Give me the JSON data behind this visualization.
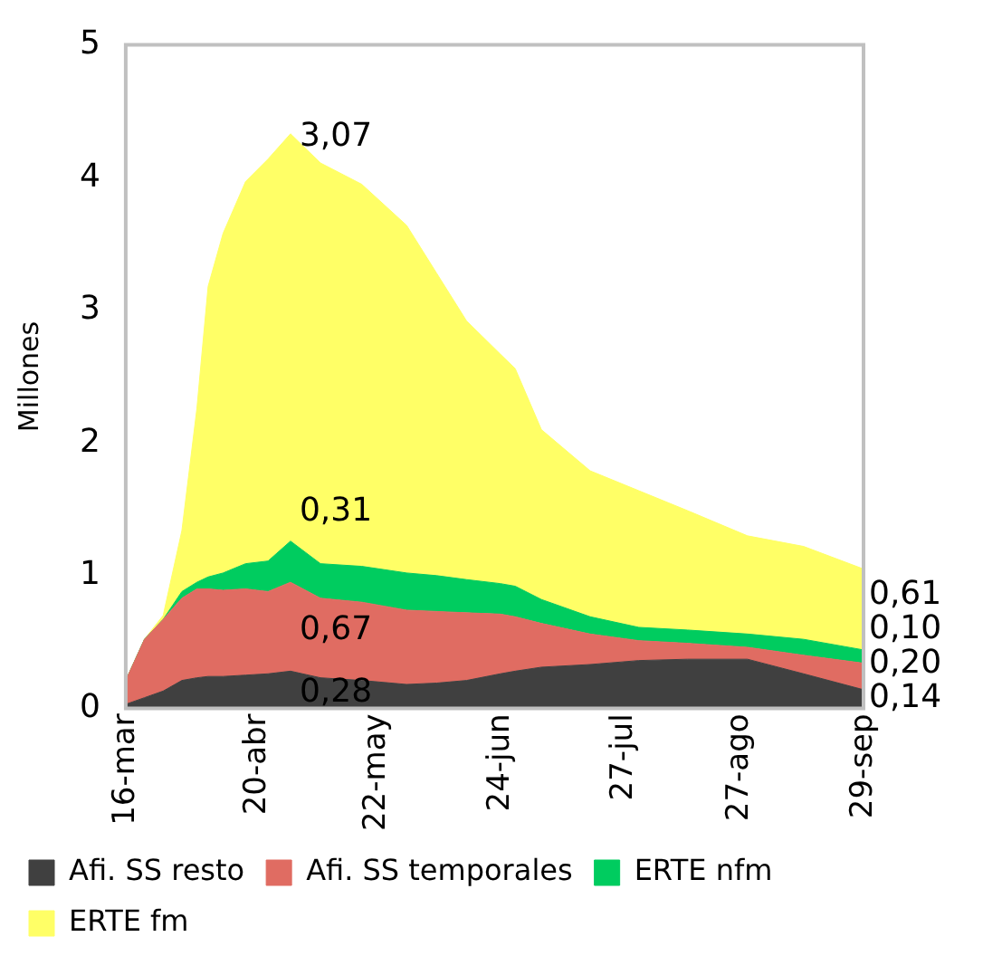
{
  "chart_data": {
    "type": "area",
    "stacked": true,
    "ylabel": "Millones",
    "x": [
      "--03-16",
      "--03-21",
      "--03-26",
      "--03-31",
      "--04-04",
      "--04-07",
      "--04-11",
      "--04-17",
      "--04-23",
      "--04-29",
      "--05-07",
      "--05-18",
      "--05-30",
      "--06-07",
      "--06-15",
      "--06-24",
      "--06-28",
      "--07-05",
      "--07-18",
      "--07-31",
      "--08-13",
      "--08-29",
      "--09-13",
      "--09-29"
    ],
    "series": [
      {
        "name": "Afi. SS resto",
        "color": "#404040",
        "values": [
          0.03,
          0.08,
          0.13,
          0.21,
          0.23,
          0.24,
          0.24,
          0.25,
          0.26,
          0.28,
          0.23,
          0.21,
          0.18,
          0.19,
          0.21,
          0.26,
          0.28,
          0.31,
          0.33,
          0.36,
          0.37,
          0.37,
          0.26,
          0.14
        ],
        "value_labels": [
          null,
          null,
          null,
          null,
          null,
          null,
          null,
          null,
          null,
          "0,28",
          null,
          null,
          null,
          null,
          null,
          null,
          null,
          null,
          null,
          null,
          null,
          null,
          null,
          "0,14"
        ]
      },
      {
        "name": "Afi. SS temporales",
        "color": "#e06c62",
        "values": [
          0.18,
          0.44,
          0.54,
          0.62,
          0.67,
          0.66,
          0.65,
          0.65,
          0.62,
          0.67,
          0.6,
          0.59,
          0.56,
          0.54,
          0.51,
          0.45,
          0.41,
          0.33,
          0.23,
          0.15,
          0.12,
          0.09,
          0.14,
          0.2
        ],
        "value_labels": [
          null,
          null,
          null,
          null,
          null,
          null,
          null,
          null,
          null,
          "0,67",
          null,
          null,
          null,
          null,
          null,
          null,
          null,
          null,
          null,
          null,
          null,
          null,
          null,
          "0,20"
        ]
      },
      {
        "name": "ERTE nfm",
        "color": "#00cc5f",
        "values": [
          0,
          0,
          0,
          0.05,
          0.05,
          0.09,
          0.13,
          0.19,
          0.23,
          0.31,
          0.26,
          0.27,
          0.28,
          0.27,
          0.25,
          0.23,
          0.23,
          0.18,
          0.13,
          0.1,
          0.1,
          0.1,
          0.12,
          0.1
        ],
        "value_labels": [
          null,
          null,
          null,
          null,
          null,
          null,
          null,
          null,
          null,
          "0,31",
          null,
          null,
          null,
          null,
          null,
          null,
          null,
          null,
          null,
          null,
          null,
          null,
          null,
          "0,10"
        ]
      },
      {
        "name": "ERTE fm",
        "color": "#ffff66",
        "values": [
          0,
          0,
          0.03,
          0.46,
          1.31,
          2.19,
          2.56,
          2.88,
          3.03,
          3.07,
          3.02,
          2.88,
          2.62,
          2.28,
          1.95,
          1.73,
          1.64,
          1.28,
          1.1,
          1.03,
          0.9,
          0.74,
          0.7,
          0.61
        ],
        "value_labels": [
          null,
          null,
          null,
          null,
          null,
          null,
          null,
          null,
          null,
          "3,07",
          null,
          null,
          null,
          null,
          null,
          null,
          null,
          null,
          null,
          null,
          null,
          null,
          null,
          "0,61"
        ]
      }
    ],
    "xlim": [
      "--03-16",
      "--09-29"
    ],
    "xticks": [
      {
        "value": "--03-16",
        "label": "16-mar"
      },
      {
        "value": "--04-20",
        "label": "20-abr"
      },
      {
        "value": "--05-22",
        "label": "22-may"
      },
      {
        "value": "--06-24",
        "label": "24-jun"
      },
      {
        "value": "--07-27",
        "label": "27-jul"
      },
      {
        "value": "--08-27",
        "label": "27-ago"
      },
      {
        "value": "--09-29",
        "label": "29-sep"
      }
    ],
    "ylim": [
      0,
      5
    ],
    "yticks": [
      0,
      1,
      2,
      3,
      4,
      5
    ],
    "grid": false,
    "legend": "bottom"
  }
}
